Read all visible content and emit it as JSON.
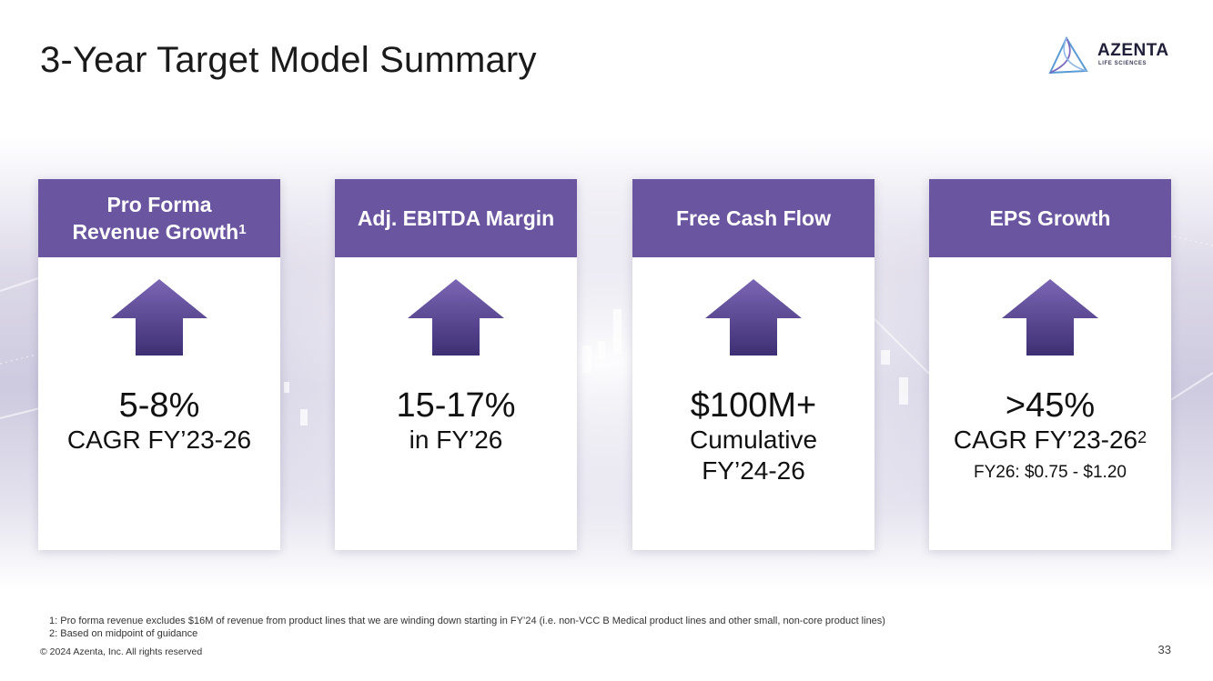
{
  "slide": {
    "title": "3-Year Target Model Summary",
    "logo": {
      "word": "AZENTA",
      "sub": "LIFE SCIENCES"
    },
    "page_number": "33",
    "copyright": "© 2024 Azenta, Inc.  All rights reserved"
  },
  "cards": [
    {
      "header": "Pro Forma Revenue Growth",
      "header_line1": "Pro Forma",
      "header_line2": "Revenue Growth",
      "header_sup": "1",
      "value": "5-8%",
      "line1": "CAGR FY’23-26",
      "line2": "",
      "note": ""
    },
    {
      "header": "Adj. EBITDA Margin",
      "value": "15-17%",
      "line1": "in FY’26",
      "line2": "",
      "note": ""
    },
    {
      "header": "Free Cash Flow",
      "value": "$100M+",
      "line1": "Cumulative",
      "line2": "FY’24-26",
      "note": ""
    },
    {
      "header": "EPS Growth",
      "value": ">45%",
      "line1": "CAGR FY’23-26",
      "line1_sup": "2",
      "line2": "",
      "note": "FY26: $0.75 - $1.20"
    }
  ],
  "footnotes": [
    "1: Pro forma revenue excludes $16M of revenue from product lines that we are winding down starting in FY’24 (i.e. non-VCC B Medical product lines and other small, non-core product lines)",
    "2: Based on midpoint of guidance"
  ],
  "colors": {
    "header_purple": "#6a56a0",
    "arrow_top": "#7b66b4",
    "arrow_bottom": "#3e2f74"
  },
  "icons": [
    "up-arrow-icon",
    "azenta-logo-icon"
  ]
}
